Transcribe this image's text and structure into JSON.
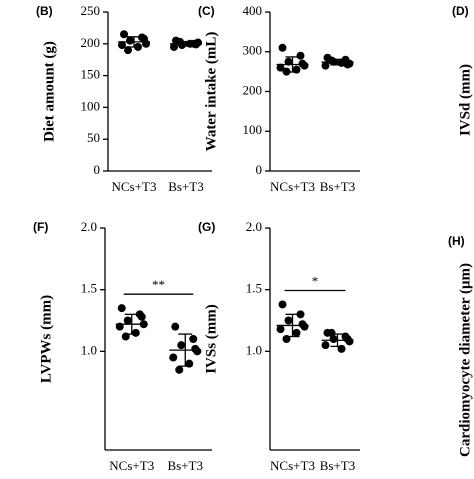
{
  "chart_data": [
    {
      "type": "dotplot",
      "panel": "(B)",
      "y_label": "Diet amount (g)",
      "categories": [
        "NCs+T3",
        "Bs+T3"
      ],
      "points": [
        [
          215,
          210,
          205,
          200,
          198,
          195,
          190,
          208
        ],
        [
          205,
          200,
          198,
          202,
          195,
          200,
          203,
          199
        ]
      ],
      "mean": [
        203,
        200
      ],
      "sd": [
        8,
        3.5
      ],
      "color": "#000000",
      "ylim": [
        0,
        250
      ],
      "yticks": [
        0,
        50,
        100,
        150,
        200,
        250
      ]
    },
    {
      "type": "dotplot",
      "panel": "(C)",
      "y_label": "Water intake (mL)",
      "categories": [
        "NCs+T3",
        "Bs+T3"
      ],
      "points": [
        [
          310,
          290,
          275,
          265,
          260,
          255,
          250,
          270
        ],
        [
          285,
          280,
          275,
          270,
          265,
          272,
          278,
          268
        ]
      ],
      "mean": [
        268,
        274
      ],
      "sd": [
        19,
        7
      ],
      "color": "#000000",
      "ylim": [
        0,
        400
      ],
      "yticks": [
        0,
        100,
        200,
        300,
        400
      ]
    },
    {
      "type": "dotplot",
      "panel": "(F)",
      "y_label": "LVPWs (mm)",
      "categories": [
        "NCs+T3",
        "Bs+T3"
      ],
      "points": [
        [
          1.35,
          1.3,
          1.25,
          1.22,
          1.2,
          1.15,
          1.12,
          1.28
        ],
        [
          1.2,
          1.1,
          1.05,
          1.0,
          0.95,
          0.9,
          0.85,
          1.02
        ]
      ],
      "mean": [
        1.22,
        1.01
      ],
      "sd": [
        0.08,
        0.13
      ],
      "color": "#000000",
      "significance": "**",
      "ylim": [
        0.2,
        2.0
      ],
      "yticks": [
        {
          "value": 1,
          "label": "1.0"
        },
        1.5,
        {
          "value": 2,
          "label": "2.0"
        }
      ]
    },
    {
      "type": "dotplot",
      "panel": "(G)",
      "y_label": "IVSs (mm)",
      "categories": [
        "NCs+T3",
        "Bs+T3"
      ],
      "points": [
        [
          1.38,
          1.3,
          1.25,
          1.2,
          1.18,
          1.15,
          1.1,
          1.22
        ],
        [
          1.15,
          1.12,
          1.1,
          1.08,
          1.05,
          1.02,
          1.15,
          1.1
        ]
      ],
      "mean": [
        1.21,
        1.09
      ],
      "sd": [
        0.09,
        0.05
      ],
      "color": "#000000",
      "significance": "*",
      "ylim": [
        0.2,
        2.0
      ],
      "yticks": [
        {
          "value": 1,
          "label": "1.0"
        },
        1.5,
        {
          "value": 2,
          "label": "2.0"
        }
      ]
    }
  ],
  "partial_panels": [
    {
      "panel": "(D)",
      "y_label": "IVSd (mm)"
    },
    {
      "panel": "(H)",
      "y_label": "Cardiomyocyte diameter (μm)"
    }
  ]
}
